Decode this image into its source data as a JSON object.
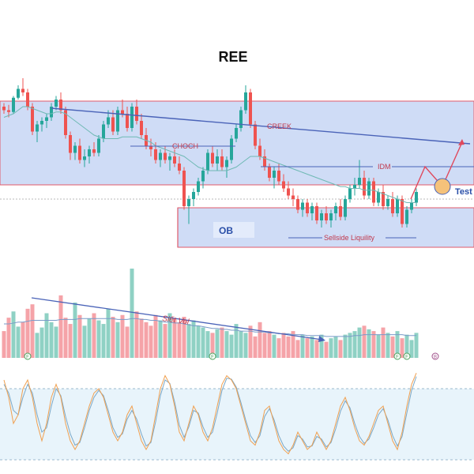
{
  "title": "REE",
  "colors": {
    "up": "#26a69a",
    "down": "#ef5350",
    "zone_fill": "#cfdcf6",
    "zone_border": "#e05a6a",
    "trend_line": "#4a63b8",
    "ma_line": "#6fb9b4",
    "vol_up": "#8fd1c4",
    "vol_down": "#f5a3a8",
    "stoch_k": "#f0a050",
    "stoch_d": "#7aa8c8",
    "stoch_band": "#e8f4fb",
    "label_red": "#c0394d",
    "label_blue": "#2a4fa8",
    "test_circle": "#f5c27a"
  },
  "annotations": {
    "creek": "CREEK",
    "choch": "CHOCH",
    "idm": "IDM",
    "test": "Test",
    "ob": "OB",
    "sellside": "Sellside Liquility",
    "siet_vol": "Siết Vol"
  },
  "volume_markers": [
    {
      "label": "F",
      "bar": 5
    },
    {
      "label": "F",
      "bar": 44
    },
    {
      "label": "F",
      "bar": 83
    },
    {
      "label": "F",
      "bar": 85
    },
    {
      "label": "B",
      "bar": 91
    }
  ],
  "chart_data": {
    "type": "candlestick",
    "title": "REE",
    "ylim": [
      0,
      100
    ],
    "stoch_ylim": [
      0,
      100
    ],
    "candles": [
      [
        80,
        82,
        76,
        78
      ],
      [
        78,
        81,
        74,
        77
      ],
      [
        77,
        86,
        76,
        85
      ],
      [
        85,
        92,
        84,
        90
      ],
      [
        90,
        96,
        86,
        88
      ],
      [
        88,
        90,
        78,
        80
      ],
      [
        80,
        82,
        64,
        66
      ],
      [
        66,
        72,
        60,
        70
      ],
      [
        70,
        74,
        66,
        72
      ],
      [
        72,
        76,
        68,
        74
      ],
      [
        74,
        82,
        72,
        80
      ],
      [
        80,
        86,
        78,
        84
      ],
      [
        84,
        88,
        76,
        78
      ],
      [
        78,
        80,
        62,
        64
      ],
      [
        64,
        66,
        50,
        54
      ],
      [
        54,
        60,
        50,
        58
      ],
      [
        58,
        62,
        48,
        50
      ],
      [
        50,
        56,
        46,
        52
      ],
      [
        52,
        58,
        48,
        56
      ],
      [
        56,
        60,
        52,
        54
      ],
      [
        54,
        64,
        52,
        62
      ],
      [
        62,
        72,
        60,
        70
      ],
      [
        70,
        78,
        68,
        74
      ],
      [
        74,
        78,
        64,
        66
      ],
      [
        66,
        80,
        64,
        78
      ],
      [
        78,
        84,
        74,
        76
      ],
      [
        76,
        80,
        66,
        68
      ],
      [
        68,
        82,
        66,
        80
      ],
      [
        80,
        84,
        70,
        72
      ],
      [
        72,
        76,
        62,
        64
      ],
      [
        64,
        68,
        56,
        58
      ],
      [
        58,
        62,
        52,
        56
      ],
      [
        56,
        60,
        48,
        50
      ],
      [
        50,
        56,
        46,
        54
      ],
      [
        54,
        58,
        48,
        50
      ],
      [
        50,
        54,
        44,
        52
      ],
      [
        52,
        56,
        46,
        48
      ],
      [
        48,
        52,
        42,
        44
      ],
      [
        44,
        46,
        22,
        24
      ],
      [
        24,
        30,
        14,
        28
      ],
      [
        28,
        34,
        24,
        32
      ],
      [
        32,
        40,
        30,
        38
      ],
      [
        38,
        46,
        34,
        44
      ],
      [
        44,
        56,
        42,
        54
      ],
      [
        54,
        58,
        46,
        48
      ],
      [
        48,
        56,
        44,
        52
      ],
      [
        52,
        56,
        44,
        46
      ],
      [
        46,
        52,
        40,
        50
      ],
      [
        50,
        64,
        48,
        62
      ],
      [
        62,
        70,
        60,
        68
      ],
      [
        68,
        80,
        66,
        78
      ],
      [
        78,
        92,
        76,
        88
      ],
      [
        88,
        90,
        68,
        70
      ],
      [
        70,
        72,
        56,
        58
      ],
      [
        58,
        62,
        50,
        52
      ],
      [
        52,
        56,
        44,
        46
      ],
      [
        46,
        48,
        38,
        40
      ],
      [
        40,
        46,
        34,
        44
      ],
      [
        44,
        48,
        36,
        38
      ],
      [
        38,
        42,
        32,
        34
      ],
      [
        34,
        38,
        28,
        30
      ],
      [
        30,
        34,
        24,
        28
      ],
      [
        28,
        30,
        20,
        22
      ],
      [
        22,
        28,
        18,
        26
      ],
      [
        26,
        28,
        18,
        20
      ],
      [
        20,
        26,
        16,
        24
      ],
      [
        24,
        26,
        14,
        16
      ],
      [
        16,
        22,
        12,
        20
      ],
      [
        20,
        24,
        14,
        16
      ],
      [
        16,
        22,
        12,
        20
      ],
      [
        20,
        26,
        16,
        24
      ],
      [
        24,
        28,
        16,
        18
      ],
      [
        18,
        30,
        16,
        28
      ],
      [
        28,
        36,
        26,
        34
      ],
      [
        34,
        40,
        30,
        36
      ],
      [
        36,
        50,
        34,
        40
      ],
      [
        40,
        44,
        28,
        30
      ],
      [
        30,
        40,
        28,
        38
      ],
      [
        38,
        40,
        24,
        26
      ],
      [
        26,
        34,
        24,
        32
      ],
      [
        32,
        36,
        22,
        24
      ],
      [
        24,
        30,
        22,
        28
      ],
      [
        28,
        32,
        18,
        20
      ],
      [
        20,
        30,
        18,
        28
      ],
      [
        28,
        30,
        12,
        14
      ],
      [
        14,
        24,
        12,
        22
      ],
      [
        22,
        28,
        20,
        26
      ],
      [
        26,
        34,
        24,
        32
      ]
    ],
    "ma": [
      74,
      75,
      76,
      78,
      80,
      80,
      79,
      78,
      77,
      76,
      76,
      77,
      77,
      76,
      74,
      72,
      70,
      68,
      66,
      64,
      63,
      62,
      62,
      62,
      62,
      63,
      63,
      63,
      63,
      62,
      61,
      60,
      58,
      57,
      56,
      55,
      54,
      53,
      52,
      50,
      48,
      46,
      45,
      44,
      44,
      44,
      44,
      44,
      45,
      46,
      48,
      50,
      52,
      52,
      52,
      51,
      50,
      49,
      48,
      47,
      46,
      45,
      44,
      43,
      42,
      41,
      40,
      39,
      38,
      37,
      36,
      35,
      35,
      34,
      34,
      34,
      33,
      33,
      33,
      32,
      31,
      30,
      29,
      28,
      27,
      26,
      26,
      26
    ],
    "volume": [
      30,
      45,
      52,
      35,
      40,
      55,
      60,
      28,
      34,
      50,
      40,
      35,
      70,
      45,
      38,
      62,
      48,
      36,
      44,
      50,
      42,
      38,
      55,
      46,
      40,
      48,
      35,
      100,
      52,
      44,
      40,
      36,
      48,
      42,
      38,
      50,
      44,
      40,
      46,
      38,
      42,
      36,
      34,
      30,
      28,
      32,
      34,
      30,
      26,
      38,
      30,
      28,
      36,
      24,
      40,
      28,
      30,
      26,
      22,
      28,
      24,
      30,
      20,
      26,
      22,
      24,
      20,
      26,
      18,
      22,
      24,
      20,
      26,
      28,
      30,
      34,
      36,
      32,
      30,
      26,
      34,
      28,
      24,
      30,
      22,
      26,
      20,
      28
    ],
    "volume_ma": [
      38,
      38,
      39,
      40,
      40,
      41,
      42,
      42,
      42,
      42,
      42,
      42,
      43,
      43,
      43,
      43,
      44,
      44,
      44,
      44,
      44,
      44,
      44,
      44,
      43,
      43,
      43,
      44,
      44,
      43,
      43,
      42,
      42,
      41,
      40,
      40,
      39,
      39,
      38,
      37,
      36,
      36,
      35,
      34,
      33,
      33,
      32,
      32,
      31,
      31,
      30,
      30,
      30,
      29,
      29,
      29,
      28,
      28,
      27,
      27,
      27,
      26,
      26,
      26,
      25,
      25,
      25,
      25,
      24,
      24,
      24,
      24,
      24,
      24,
      25,
      25,
      26,
      26,
      26,
      26,
      26,
      26,
      26,
      26,
      26,
      25,
      25,
      25
    ],
    "stoch_k": [
      90,
      70,
      40,
      50,
      80,
      90,
      70,
      40,
      20,
      40,
      70,
      85,
      70,
      40,
      20,
      10,
      20,
      40,
      60,
      75,
      80,
      70,
      50,
      30,
      20,
      30,
      50,
      60,
      40,
      20,
      10,
      20,
      50,
      80,
      95,
      85,
      60,
      30,
      20,
      40,
      60,
      50,
      30,
      20,
      35,
      60,
      85,
      95,
      90,
      80,
      60,
      40,
      20,
      15,
      30,
      55,
      60,
      40,
      20,
      10,
      5,
      15,
      30,
      20,
      10,
      15,
      30,
      20,
      10,
      20,
      40,
      60,
      70,
      55,
      35,
      20,
      15,
      25,
      40,
      55,
      60,
      40,
      20,
      10,
      30,
      60,
      85,
      98
    ],
    "stoch_d": [
      85,
      75,
      55,
      50,
      70,
      85,
      75,
      50,
      30,
      35,
      60,
      80,
      72,
      48,
      28,
      15,
      18,
      35,
      55,
      70,
      78,
      72,
      55,
      35,
      24,
      28,
      45,
      55,
      45,
      28,
      14,
      18,
      42,
      72,
      90,
      86,
      65,
      38,
      24,
      36,
      55,
      52,
      36,
      24,
      30,
      52,
      78,
      92,
      91,
      82,
      64,
      44,
      26,
      18,
      26,
      48,
      57,
      44,
      26,
      14,
      8,
      12,
      26,
      22,
      13,
      14,
      25,
      22,
      13,
      18,
      34,
      54,
      66,
      58,
      40,
      25,
      17,
      22,
      35,
      50,
      57,
      44,
      26,
      14,
      25,
      52,
      78,
      94
    ]
  }
}
